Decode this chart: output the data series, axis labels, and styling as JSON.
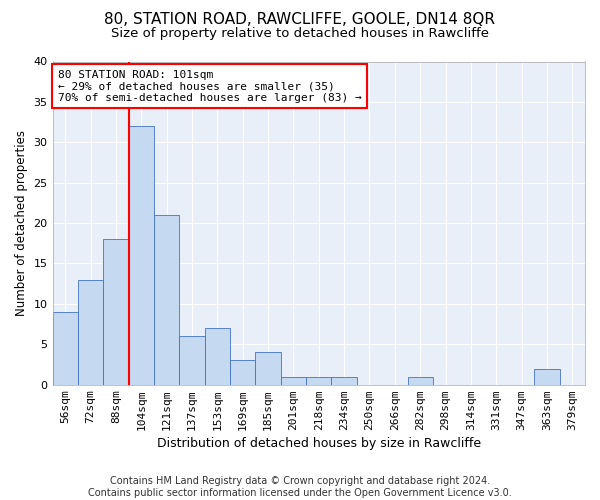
{
  "title": "80, STATION ROAD, RAWCLIFFE, GOOLE, DN14 8QR",
  "subtitle": "Size of property relative to detached houses in Rawcliffe",
  "xlabel": "Distribution of detached houses by size in Rawcliffe",
  "ylabel": "Number of detached properties",
  "categories": [
    "56sqm",
    "72sqm",
    "88sqm",
    "104sqm",
    "121sqm",
    "137sqm",
    "153sqm",
    "169sqm",
    "185sqm",
    "201sqm",
    "218sqm",
    "234sqm",
    "250sqm",
    "266sqm",
    "282sqm",
    "298sqm",
    "314sqm",
    "331sqm",
    "347sqm",
    "363sqm",
    "379sqm"
  ],
  "values": [
    9,
    13,
    18,
    32,
    21,
    6,
    7,
    3,
    4,
    1,
    1,
    1,
    0,
    0,
    1,
    0,
    0,
    0,
    0,
    2,
    0
  ],
  "bar_color": "#c5d9f1",
  "bar_edge_color": "#4472c4",
  "red_line_index": 3,
  "annotation_text": "80 STATION ROAD: 101sqm\n← 29% of detached houses are smaller (35)\n70% of semi-detached houses are larger (83) →",
  "annotation_box_color": "white",
  "annotation_box_edge_color": "red",
  "ylim": [
    0,
    40
  ],
  "yticks": [
    0,
    5,
    10,
    15,
    20,
    25,
    30,
    35,
    40
  ],
  "footer": "Contains HM Land Registry data © Crown copyright and database right 2024.\nContains public sector information licensed under the Open Government Licence v3.0.",
  "background_color": "#e8eff8",
  "grid_color": "white",
  "title_fontsize": 11,
  "subtitle_fontsize": 9.5,
  "xlabel_fontsize": 9,
  "ylabel_fontsize": 8.5,
  "footer_fontsize": 7,
  "tick_fontsize": 8
}
